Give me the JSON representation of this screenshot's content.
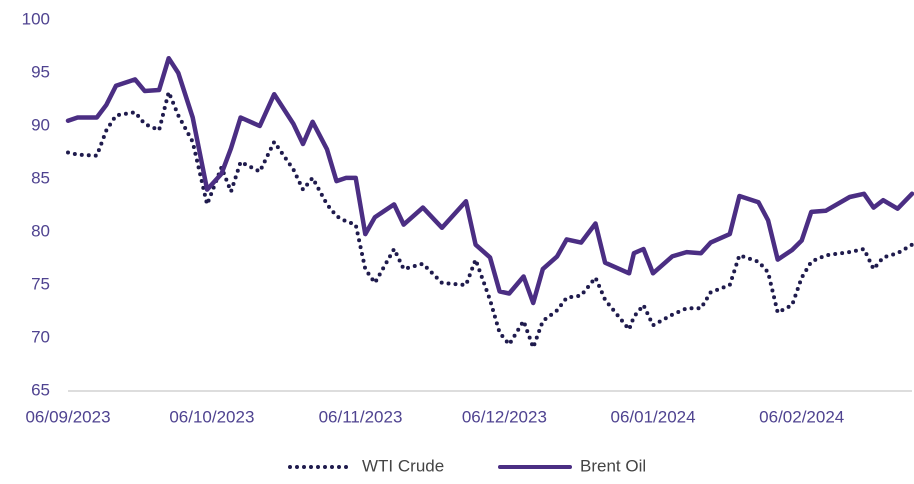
{
  "chart_data": {
    "type": "line",
    "x": [
      "06/09/2023",
      "08/09/2023",
      "12/09/2023",
      "14/09/2023",
      "16/09/2023",
      "20/09/2023",
      "22/09/2023",
      "25/09/2023",
      "27/09/2023",
      "29/09/2023",
      "02/10/2023",
      "05/10/2023",
      "08/10/2023",
      "10/10/2023",
      "12/10/2023",
      "16/10/2023",
      "19/10/2023",
      "23/10/2023",
      "25/10/2023",
      "27/10/2023",
      "30/10/2023",
      "01/11/2023",
      "03/11/2023",
      "05/11/2023",
      "07/11/2023",
      "09/11/2023",
      "13/11/2023",
      "15/11/2023",
      "19/11/2023",
      "23/11/2023",
      "28/11/2023",
      "30/11/2023",
      "03/12/2023",
      "05/12/2023",
      "07/12/2023",
      "10/12/2023",
      "12/12/2023",
      "14/12/2023",
      "17/12/2023",
      "19/12/2023",
      "22/12/2023",
      "25/12/2023",
      "27/12/2023",
      "01/01/2024",
      "02/01/2024",
      "04/01/2024",
      "06/01/2024",
      "10/01/2024",
      "13/01/2024",
      "16/01/2024",
      "18/01/2024",
      "22/01/2024",
      "24/01/2024",
      "28/01/2024",
      "30/01/2024",
      "01/02/2024",
      "04/02/2024",
      "06/02/2024",
      "08/02/2024",
      "11/02/2024",
      "16/02/2024",
      "19/02/2024",
      "21/02/2024",
      "23/02/2024",
      "26/02/2024",
      "29/02/2024"
    ],
    "series": [
      {
        "name": "WTI Crude",
        "color": "#1f1b4d",
        "style": "dotted",
        "values": [
          87.5,
          87.3,
          87.2,
          89.6,
          91.0,
          91.3,
          90.2,
          89.6,
          93.2,
          91.0,
          88.5,
          82.6,
          86.1,
          83.8,
          86.6,
          85.7,
          88.5,
          85.9,
          84.0,
          85.1,
          82.6,
          81.5,
          81.0,
          80.7,
          76.5,
          75.2,
          78.4,
          76.5,
          77.0,
          75.2,
          75.0,
          77.4,
          73.6,
          70.5,
          69.4,
          71.6,
          69.1,
          71.6,
          72.6,
          73.8,
          74.0,
          75.7,
          73.6,
          70.8,
          72.0,
          73.1,
          71.2,
          72.2,
          72.8,
          72.8,
          74.3,
          75.0,
          77.8,
          77.2,
          76.2,
          72.4,
          73.1,
          75.7,
          77.2,
          77.8,
          78.1,
          78.4,
          76.5,
          77.6,
          78.0,
          78.8
        ]
      },
      {
        "name": "Brent Oil",
        "color": "#4b2e83",
        "style": "solid",
        "values": [
          90.5,
          90.8,
          90.8,
          92.0,
          93.8,
          94.4,
          93.3,
          93.4,
          96.4,
          95.0,
          90.8,
          84.0,
          85.5,
          87.9,
          90.8,
          90.0,
          93.0,
          90.2,
          88.3,
          90.4,
          87.8,
          84.8,
          85.1,
          85.1,
          79.8,
          81.4,
          82.6,
          80.7,
          82.3,
          80.4,
          82.9,
          78.8,
          77.6,
          74.4,
          74.2,
          75.8,
          73.3,
          76.5,
          77.7,
          79.3,
          79.0,
          80.8,
          77.1,
          76.1,
          78.0,
          78.4,
          76.1,
          77.7,
          78.1,
          78.0,
          79.0,
          79.8,
          83.4,
          82.8,
          81.1,
          77.4,
          78.3,
          79.2,
          81.9,
          82.0,
          83.3,
          83.6,
          82.3,
          83.0,
          82.2,
          83.6
        ]
      }
    ],
    "xlim": [
      "06/09/2023",
      "29/02/2024"
    ],
    "xticks": [
      "06/09/2023",
      "06/10/2023",
      "06/11/2023",
      "06/12/2023",
      "06/01/2024",
      "06/02/2024"
    ],
    "ylim": [
      65,
      100
    ],
    "yticks": [
      65,
      70,
      75,
      80,
      85,
      90,
      95,
      100
    ],
    "grid": false,
    "legend": "bottom"
  }
}
